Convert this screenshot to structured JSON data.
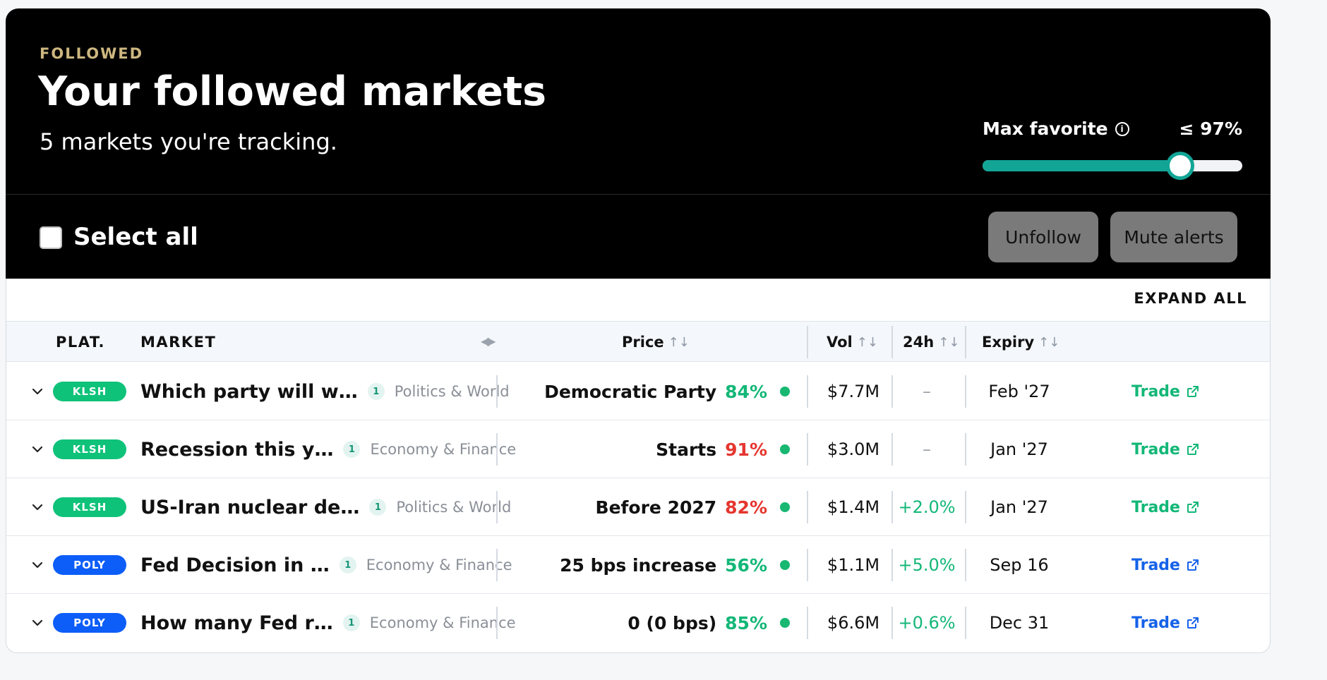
{
  "header": {
    "eyebrow": "FOLLOWED",
    "title": "Your followed markets",
    "subtitle": "5 markets you're tracking."
  },
  "filter": {
    "label": "Max favorite",
    "info_icon": "info-icon",
    "value_text": "≤ 97%",
    "value_fraction": 0.76
  },
  "actions": {
    "select_all_label": "Select all",
    "select_all_checked": false,
    "unfollow_label": "Unfollow",
    "mute_label": "Mute alerts"
  },
  "table": {
    "expand_all_label": "EXPAND ALL",
    "columns": {
      "platform": "PLAT.",
      "market": "MARKET",
      "price": "Price",
      "volume": "Vol",
      "change": "24h",
      "expiry": "Expiry"
    },
    "sort_icon": "↑↓",
    "rows": [
      {
        "platform": "KLSH",
        "platform_color": "#0fc27a",
        "market": "Which party will w…",
        "count": "1",
        "category": "Politics & World",
        "outcome": "Democratic Party",
        "price": "84%",
        "price_tone": "green",
        "volume": "$7.7M",
        "change": "–",
        "change_tone": "dash",
        "expiry": "Feb '27",
        "trade_label": "Trade",
        "trade_tone": "green"
      },
      {
        "platform": "KLSH",
        "platform_color": "#0fc27a",
        "market": "Recession this y…",
        "count": "1",
        "category": "Economy & Finance",
        "outcome": "Starts",
        "price": "91%",
        "price_tone": "red",
        "volume": "$3.0M",
        "change": "–",
        "change_tone": "dash",
        "expiry": "Jan '27",
        "trade_label": "Trade",
        "trade_tone": "green"
      },
      {
        "platform": "KLSH",
        "platform_color": "#0fc27a",
        "market": "US-Iran nuclear de…",
        "count": "1",
        "category": "Politics & World",
        "outcome": "Before 2027",
        "price": "82%",
        "price_tone": "red",
        "volume": "$1.4M",
        "change": "+2.0%",
        "change_tone": "pos",
        "expiry": "Jan '27",
        "trade_label": "Trade",
        "trade_tone": "green"
      },
      {
        "platform": "POLY",
        "platform_color": "#0d5ef8",
        "market": "Fed Decision in …",
        "count": "1",
        "category": "Economy & Finance",
        "outcome": "25 bps increase",
        "price": "56%",
        "price_tone": "green",
        "volume": "$1.1M",
        "change": "+5.0%",
        "change_tone": "pos",
        "expiry": "Sep 16",
        "trade_label": "Trade",
        "trade_tone": "blue"
      },
      {
        "platform": "POLY",
        "platform_color": "#0d5ef8",
        "market": "How many Fed r…",
        "count": "1",
        "category": "Economy & Finance",
        "outcome": "0 (0 bps)",
        "price": "85%",
        "price_tone": "green",
        "volume": "$6.6M",
        "change": "+0.6%",
        "change_tone": "pos",
        "expiry": "Dec 31",
        "trade_label": "Trade",
        "trade_tone": "blue"
      }
    ]
  }
}
